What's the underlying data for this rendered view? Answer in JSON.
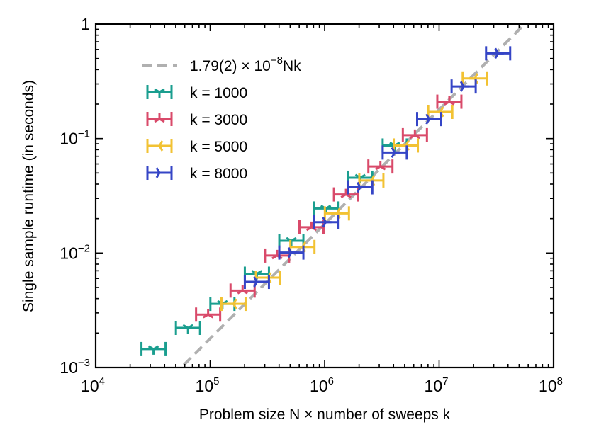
{
  "chart_data": {
    "type": "scatter",
    "xlabel": "Problem size N × number of sweeps k",
    "ylabel": "Single sample runtime (in seconds)",
    "xscale": "log",
    "yscale": "log",
    "xlim": [
      10000,
      100000000
    ],
    "ylim": [
      0.001,
      1
    ],
    "x_ticks": [
      {
        "base": "10",
        "exp": "4",
        "value": 10000
      },
      {
        "base": "10",
        "exp": "5",
        "value": 100000
      },
      {
        "base": "10",
        "exp": "6",
        "value": 1000000
      },
      {
        "base": "10",
        "exp": "7",
        "value": 10000000
      },
      {
        "base": "10",
        "exp": "8",
        "value": 100000000
      }
    ],
    "y_ticks": [
      {
        "base": "10",
        "exp": "−3",
        "value": 0.001
      },
      {
        "base": "10",
        "exp": "−2",
        "value": 0.01
      },
      {
        "base": "10",
        "exp": "−1",
        "value": 0.1
      },
      {
        "base": "1",
        "exp": "",
        "value": 1
      }
    ],
    "legend_position": "top-left",
    "fit": {
      "label": "1.79(2) × 10",
      "label_exp": "−8",
      "label_suffix": "Nk",
      "coefficient": 1.79e-08,
      "color": "#b0b0b0"
    },
    "series": [
      {
        "name": "k = 1000",
        "k": 1000,
        "color": "#1a9e8f",
        "marker": "tri_down",
        "x": [
          32000,
          64000,
          128000,
          256000,
          512000,
          1024000,
          2048000,
          4096000
        ],
        "y": [
          0.00145,
          0.00222,
          0.0036,
          0.0066,
          0.0128,
          0.0245,
          0.0455,
          0.087
        ]
      },
      {
        "name": "k = 3000",
        "k": 3000,
        "color": "#d94a6a",
        "marker": "tri_up",
        "x": [
          96000,
          192000,
          384000,
          768000,
          1536000,
          3072000,
          6144000,
          12288000
        ],
        "y": [
          0.0029,
          0.0047,
          0.0095,
          0.0168,
          0.0325,
          0.057,
          0.107,
          0.21
        ]
      },
      {
        "name": "k = 5000",
        "k": 5000,
        "color": "#f2c233",
        "marker": "tri_left",
        "x": [
          160000,
          320000,
          640000,
          1280000,
          2560000,
          5120000,
          10240000,
          20480000
        ],
        "y": [
          0.0036,
          0.0061,
          0.0113,
          0.0222,
          0.043,
          0.087,
          0.171,
          0.335
        ]
      },
      {
        "name": "k = 8000",
        "k": 8000,
        "color": "#3545c6",
        "marker": "tri_right",
        "x": [
          256000,
          512000,
          1024000,
          2048000,
          4096000,
          8192000,
          16384000,
          32768000
        ],
        "y": [
          0.0056,
          0.0101,
          0.0186,
          0.0375,
          0.0755,
          0.148,
          0.285,
          0.555
        ]
      }
    ]
  }
}
